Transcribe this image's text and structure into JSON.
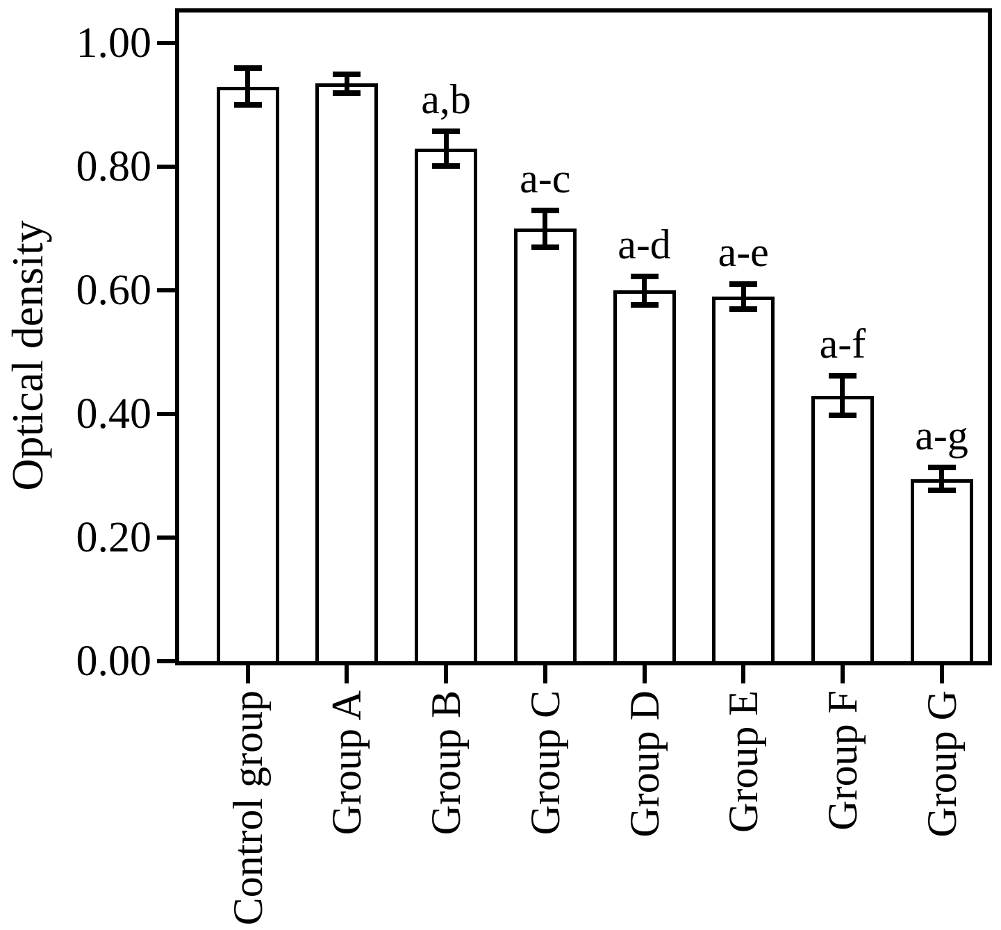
{
  "chart_data": {
    "type": "bar",
    "title": "",
    "xlabel": "",
    "ylabel": "Optical density",
    "categories": [
      "Control group",
      "Group A",
      "Group B",
      "Group C",
      "Group D",
      "Group E",
      "Group F",
      "Group G"
    ],
    "values": [
      0.93,
      0.935,
      0.83,
      0.7,
      0.6,
      0.59,
      0.43,
      0.295
    ],
    "errors": [
      0.03,
      0.015,
      0.028,
      0.03,
      0.023,
      0.02,
      0.032,
      0.019
    ],
    "annotations": [
      "",
      "",
      "a,b",
      "a-c",
      "a-d",
      "a-e",
      "a-f",
      "a-g"
    ],
    "ylim": [
      0,
      1.05
    ],
    "yticks": [
      0.0,
      0.2,
      0.4,
      0.6,
      0.8,
      1.0
    ],
    "ytick_labels": [
      "0.00",
      "0.20",
      "0.40",
      "0.60",
      "0.80",
      "1.00"
    ],
    "grid": false,
    "legend": false,
    "bar_fill_color": "#ffffff",
    "bar_edge_color": "#000000",
    "error_bar_color": "#000000",
    "axis_color": "#000000",
    "background_color": "#ffffff"
  }
}
